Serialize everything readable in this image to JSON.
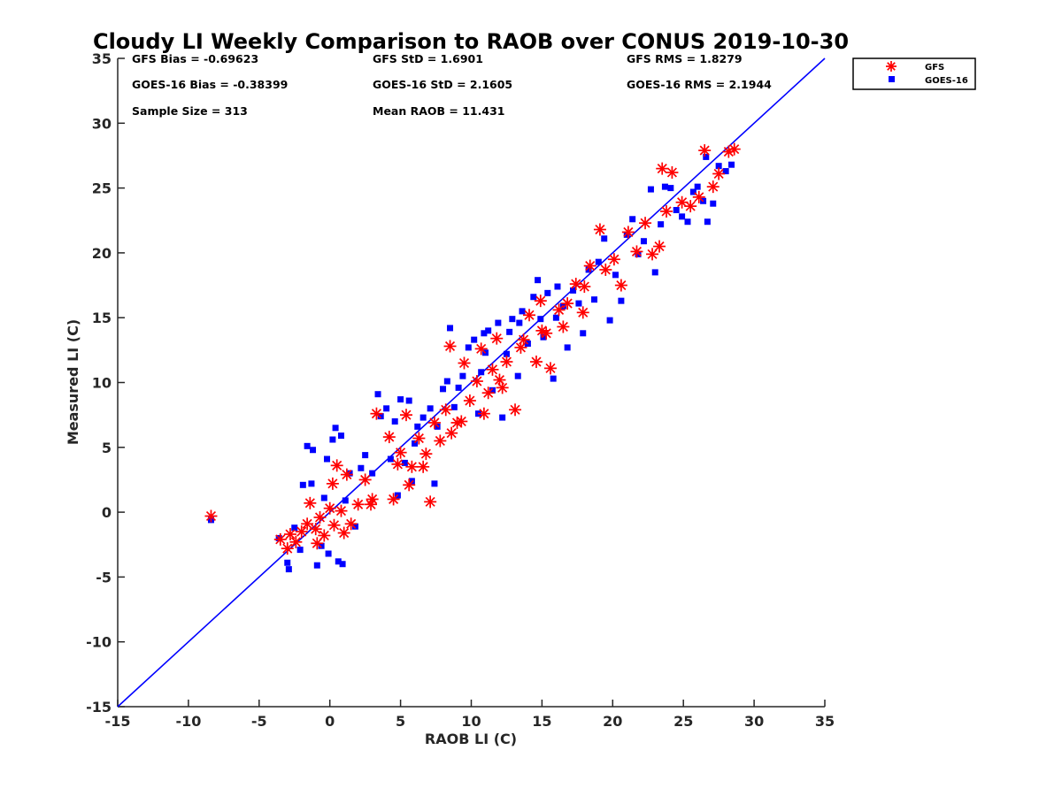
{
  "chart_data": {
    "type": "scatter",
    "title": "Cloudy LI Weekly Comparison to RAOB over CONUS 2019-10-30",
    "xlabel": "RAOB LI (C)",
    "ylabel": "Measured LI (C)",
    "xlim": [
      -15,
      35
    ],
    "ylim": [
      -15,
      35
    ],
    "xticks": [
      "-15",
      "-10",
      "-5",
      "0",
      "5",
      "10",
      "15",
      "20",
      "25",
      "30",
      "35"
    ],
    "yticks": [
      "35",
      "30",
      "25",
      "20",
      "15",
      "10",
      "5",
      "0",
      "-5",
      "-10",
      "-15"
    ],
    "grid": false,
    "legend_position": "top-right",
    "colors": {
      "gfs": "#ff0000",
      "goes": "#0000ff",
      "line": "#0000ff"
    },
    "stats": {
      "gfs_bias": "GFS Bias = -0.69623",
      "goes_bias": "GOES-16 Bias = -0.38399",
      "sample_size": "Sample Size = 313",
      "gfs_std": "GFS StD = 1.6901",
      "goes_std": "GOES-16 StD = 2.1605",
      "mean_raob": "Mean RAOB = 11.431",
      "gfs_rms": "GFS RMS = 1.8279",
      "goes_rms": "GOES-16 RMS = 2.1944"
    },
    "one_to_one_line": [
      [
        -15,
        -15
      ],
      [
        35,
        35
      ]
    ],
    "series": [
      {
        "name": "GFS",
        "marker": "asterisk",
        "points": [
          [
            -8.4,
            -0.3
          ],
          [
            -3.5,
            -2.1
          ],
          [
            -3.0,
            -2.8
          ],
          [
            -2.8,
            -1.7
          ],
          [
            -2.4,
            -2.3
          ],
          [
            -2.0,
            -1.5
          ],
          [
            -1.6,
            -0.9
          ],
          [
            -1.4,
            0.7
          ],
          [
            -1.0,
            -1.3
          ],
          [
            -0.9,
            -2.4
          ],
          [
            -0.7,
            -0.4
          ],
          [
            -0.4,
            -1.8
          ],
          [
            0.0,
            0.3
          ],
          [
            0.2,
            2.2
          ],
          [
            0.3,
            -1.0
          ],
          [
            0.5,
            3.6
          ],
          [
            0.8,
            0.1
          ],
          [
            1.0,
            -1.6
          ],
          [
            1.2,
            2.9
          ],
          [
            1.5,
            -0.9
          ],
          [
            2.0,
            0.6
          ],
          [
            2.5,
            2.5
          ],
          [
            2.9,
            0.6
          ],
          [
            3.0,
            1.0
          ],
          [
            3.3,
            7.6
          ],
          [
            4.2,
            5.8
          ],
          [
            4.5,
            1.0
          ],
          [
            4.8,
            3.7
          ],
          [
            5.0,
            4.6
          ],
          [
            5.4,
            7.5
          ],
          [
            5.6,
            2.1
          ],
          [
            5.8,
            3.5
          ],
          [
            6.3,
            5.7
          ],
          [
            6.6,
            3.5
          ],
          [
            6.8,
            4.5
          ],
          [
            7.1,
            0.8
          ],
          [
            7.4,
            6.9
          ],
          [
            7.8,
            5.5
          ],
          [
            8.2,
            7.9
          ],
          [
            8.5,
            12.8
          ],
          [
            8.6,
            6.1
          ],
          [
            9.0,
            6.9
          ],
          [
            9.3,
            7.0
          ],
          [
            9.5,
            11.5
          ],
          [
            9.9,
            8.6
          ],
          [
            10.4,
            10.1
          ],
          [
            10.7,
            12.6
          ],
          [
            11.2,
            9.2
          ],
          [
            11.8,
            13.4
          ],
          [
            12.2,
            9.6
          ],
          [
            12.5,
            11.6
          ],
          [
            13.1,
            7.9
          ],
          [
            13.5,
            12.7
          ],
          [
            14.1,
            15.2
          ],
          [
            14.6,
            11.6
          ],
          [
            14.9,
            16.3
          ],
          [
            15.3,
            13.8
          ],
          [
            15.6,
            11.1
          ],
          [
            16.2,
            15.6
          ],
          [
            16.8,
            16.1
          ],
          [
            17.4,
            17.6
          ],
          [
            17.9,
            15.4
          ],
          [
            18.4,
            19.0
          ],
          [
            19.1,
            21.8
          ],
          [
            19.5,
            18.7
          ],
          [
            20.1,
            19.5
          ],
          [
            20.6,
            17.5
          ],
          [
            21.1,
            21.6
          ],
          [
            21.7,
            20.1
          ],
          [
            22.3,
            22.3
          ],
          [
            22.8,
            19.9
          ],
          [
            23.3,
            20.5
          ],
          [
            23.5,
            26.5
          ],
          [
            23.8,
            23.2
          ],
          [
            24.2,
            26.2
          ],
          [
            24.9,
            23.9
          ],
          [
            25.5,
            23.6
          ],
          [
            26.1,
            24.3
          ],
          [
            26.5,
            27.9
          ],
          [
            27.1,
            25.1
          ],
          [
            27.5,
            26.1
          ],
          [
            28.2,
            27.8
          ],
          [
            28.6,
            28.0
          ],
          [
            13.7,
            13.3
          ],
          [
            15.0,
            14.0
          ],
          [
            11.5,
            11.0
          ],
          [
            10.9,
            7.6
          ],
          [
            12.0,
            10.2
          ],
          [
            16.5,
            14.3
          ],
          [
            18.0,
            17.4
          ]
        ]
      },
      {
        "name": "GOES-16",
        "marker": "square",
        "points": [
          [
            -8.4,
            -0.6
          ],
          [
            -3.6,
            -2.0
          ],
          [
            -3.0,
            -3.9
          ],
          [
            -2.9,
            -4.4
          ],
          [
            -2.5,
            -1.2
          ],
          [
            -2.1,
            -2.9
          ],
          [
            -1.9,
            2.1
          ],
          [
            -1.6,
            5.1
          ],
          [
            -1.3,
            2.2
          ],
          [
            -1.2,
            4.8
          ],
          [
            -0.9,
            -4.1
          ],
          [
            -0.6,
            -2.6
          ],
          [
            -0.4,
            1.1
          ],
          [
            -0.2,
            4.1
          ],
          [
            -0.1,
            -3.2
          ],
          [
            0.2,
            5.6
          ],
          [
            0.4,
            6.5
          ],
          [
            0.6,
            -3.8
          ],
          [
            0.8,
            5.9
          ],
          [
            0.9,
            -4.0
          ],
          [
            1.1,
            0.9
          ],
          [
            1.4,
            3.0
          ],
          [
            1.8,
            -1.1
          ],
          [
            2.2,
            3.4
          ],
          [
            2.5,
            4.4
          ],
          [
            3.0,
            3.0
          ],
          [
            3.4,
            9.1
          ],
          [
            3.6,
            7.4
          ],
          [
            4.0,
            8.0
          ],
          [
            4.3,
            4.1
          ],
          [
            4.6,
            7.0
          ],
          [
            4.8,
            1.3
          ],
          [
            5.0,
            8.7
          ],
          [
            5.3,
            3.8
          ],
          [
            5.6,
            8.6
          ],
          [
            5.8,
            2.4
          ],
          [
            6.0,
            5.3
          ],
          [
            6.2,
            6.6
          ],
          [
            6.6,
            7.3
          ],
          [
            7.1,
            8.0
          ],
          [
            7.4,
            2.2
          ],
          [
            7.6,
            6.6
          ],
          [
            8.0,
            9.5
          ],
          [
            8.3,
            10.1
          ],
          [
            8.5,
            14.2
          ],
          [
            8.8,
            8.1
          ],
          [
            9.1,
            9.6
          ],
          [
            9.4,
            10.5
          ],
          [
            9.8,
            12.7
          ],
          [
            10.2,
            13.3
          ],
          [
            10.5,
            7.6
          ],
          [
            10.9,
            13.8
          ],
          [
            11.2,
            14.0
          ],
          [
            11.5,
            9.4
          ],
          [
            11.9,
            14.6
          ],
          [
            12.2,
            7.3
          ],
          [
            12.5,
            12.2
          ],
          [
            12.9,
            14.9
          ],
          [
            13.3,
            10.5
          ],
          [
            13.6,
            15.5
          ],
          [
            14.0,
            13.0
          ],
          [
            14.4,
            16.6
          ],
          [
            14.7,
            17.9
          ],
          [
            15.1,
            13.5
          ],
          [
            15.4,
            16.9
          ],
          [
            15.8,
            10.3
          ],
          [
            16.1,
            17.4
          ],
          [
            16.5,
            15.9
          ],
          [
            16.8,
            12.7
          ],
          [
            17.2,
            17.1
          ],
          [
            17.6,
            16.1
          ],
          [
            17.9,
            13.8
          ],
          [
            18.3,
            18.7
          ],
          [
            18.7,
            16.4
          ],
          [
            19.0,
            19.3
          ],
          [
            19.4,
            21.1
          ],
          [
            19.8,
            14.8
          ],
          [
            20.2,
            18.3
          ],
          [
            20.6,
            16.3
          ],
          [
            21.0,
            21.4
          ],
          [
            21.4,
            22.6
          ],
          [
            21.8,
            19.9
          ],
          [
            22.2,
            20.9
          ],
          [
            22.7,
            24.9
          ],
          [
            23.0,
            18.5
          ],
          [
            23.4,
            22.2
          ],
          [
            23.7,
            25.1
          ],
          [
            24.1,
            25.0
          ],
          [
            24.5,
            23.3
          ],
          [
            24.9,
            22.8
          ],
          [
            25.3,
            22.4
          ],
          [
            25.7,
            24.7
          ],
          [
            26.0,
            25.1
          ],
          [
            26.4,
            24.0
          ],
          [
            26.7,
            22.4
          ],
          [
            27.1,
            23.8
          ],
          [
            27.5,
            26.7
          ],
          [
            28.0,
            26.3
          ],
          [
            28.4,
            26.8
          ],
          [
            26.6,
            27.4
          ],
          [
            12.7,
            13.9
          ],
          [
            13.4,
            14.6
          ],
          [
            11.0,
            12.3
          ],
          [
            10.7,
            10.8
          ],
          [
            14.9,
            14.9
          ],
          [
            16.0,
            15.0
          ]
        ]
      }
    ]
  }
}
